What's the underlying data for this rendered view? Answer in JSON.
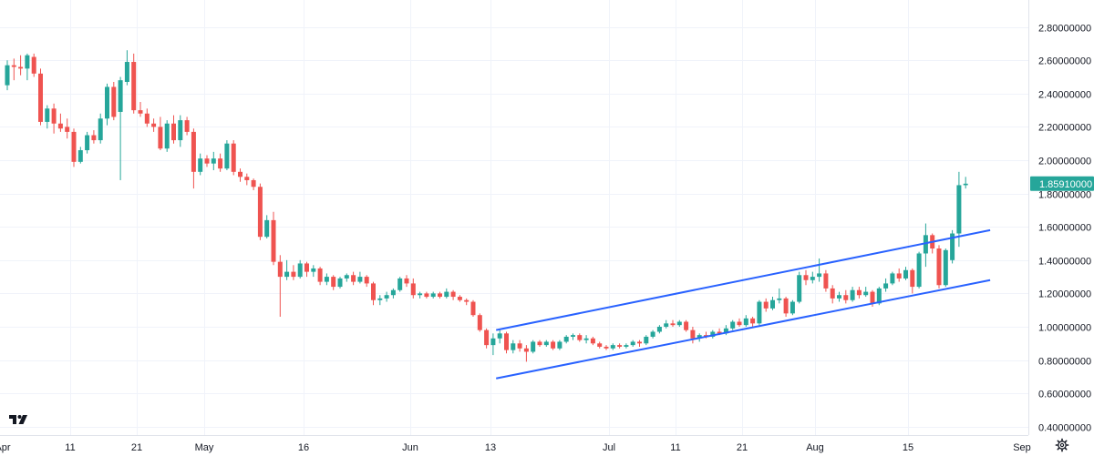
{
  "chart_data": {
    "type": "candlestick",
    "x_axis_labels": [
      "Apr",
      "11",
      "21",
      "May",
      "16",
      "Jun",
      "13",
      "Jul",
      "11",
      "21",
      "Aug",
      "15",
      "Sep"
    ],
    "y_axis_ticks": [
      "0.40000000",
      "0.60000000",
      "0.80000000",
      "1.00000000",
      "1.20000000",
      "1.40000000",
      "1.60000000",
      "1.80000000",
      "2.00000000",
      "2.20000000",
      "2.40000000",
      "2.60000000",
      "2.80000000"
    ],
    "ylim": [
      0.32,
      2.9
    ],
    "last_price": "1.85910000",
    "grid": true,
    "colors": {
      "up": "#26a69a",
      "down": "#ef5350",
      "channel": "#2962ff",
      "grid": "#f0f3fa"
    },
    "candles": [
      {
        "d": "Apr 1",
        "o": 2.45,
        "h": 2.6,
        "l": 2.42,
        "c": 2.57
      },
      {
        "d": "Apr 2",
        "o": 2.57,
        "h": 2.61,
        "l": 2.48,
        "c": 2.56
      },
      {
        "d": "Apr 3",
        "o": 2.56,
        "h": 2.63,
        "l": 2.51,
        "c": 2.55
      },
      {
        "d": "Apr 4",
        "o": 2.55,
        "h": 2.64,
        "l": 2.48,
        "c": 2.63
      },
      {
        "d": "Apr 5",
        "o": 2.62,
        "h": 2.64,
        "l": 2.5,
        "c": 2.52
      },
      {
        "d": "Apr 6",
        "o": 2.52,
        "h": 2.55,
        "l": 2.21,
        "c": 2.23
      },
      {
        "d": "Apr 7",
        "o": 2.23,
        "h": 2.33,
        "l": 2.19,
        "c": 2.31
      },
      {
        "d": "Apr 8",
        "o": 2.31,
        "h": 2.34,
        "l": 2.16,
        "c": 2.22
      },
      {
        "d": "Apr 9",
        "o": 2.22,
        "h": 2.28,
        "l": 2.17,
        "c": 2.19
      },
      {
        "d": "Apr 10",
        "o": 2.2,
        "h": 2.25,
        "l": 2.13,
        "c": 2.17
      },
      {
        "d": "Apr 11",
        "o": 2.17,
        "h": 2.19,
        "l": 1.96,
        "c": 1.99
      },
      {
        "d": "Apr 12",
        "o": 1.99,
        "h": 2.08,
        "l": 1.98,
        "c": 2.06
      },
      {
        "d": "Apr 13",
        "o": 2.06,
        "h": 2.17,
        "l": 2.04,
        "c": 2.15
      },
      {
        "d": "Apr 14",
        "o": 2.15,
        "h": 2.18,
        "l": 2.1,
        "c": 2.12
      },
      {
        "d": "Apr 15",
        "o": 2.12,
        "h": 2.28,
        "l": 2.1,
        "c": 2.25
      },
      {
        "d": "Apr 16",
        "o": 2.25,
        "h": 2.46,
        "l": 2.21,
        "c": 2.44
      },
      {
        "d": "Apr 17",
        "o": 2.44,
        "h": 2.47,
        "l": 2.24,
        "c": 2.26
      },
      {
        "d": "Apr 18",
        "o": 2.29,
        "h": 2.5,
        "l": 1.88,
        "c": 2.48
      },
      {
        "d": "Apr 19",
        "o": 2.47,
        "h": 2.66,
        "l": 2.45,
        "c": 2.59
      },
      {
        "d": "Apr 20",
        "o": 2.59,
        "h": 2.64,
        "l": 2.28,
        "c": 2.3
      },
      {
        "d": "Apr 21",
        "o": 2.3,
        "h": 2.35,
        "l": 2.26,
        "c": 2.28
      },
      {
        "d": "Apr 22",
        "o": 2.28,
        "h": 2.31,
        "l": 2.2,
        "c": 2.22
      },
      {
        "d": "Apr 23",
        "o": 2.22,
        "h": 2.25,
        "l": 2.17,
        "c": 2.2
      },
      {
        "d": "Apr 24",
        "o": 2.2,
        "h": 2.26,
        "l": 2.06,
        "c": 2.07
      },
      {
        "d": "Apr 25",
        "o": 2.07,
        "h": 2.24,
        "l": 2.05,
        "c": 2.22
      },
      {
        "d": "Apr 26",
        "o": 2.22,
        "h": 2.27,
        "l": 2.1,
        "c": 2.12
      },
      {
        "d": "Apr 27",
        "o": 2.12,
        "h": 2.27,
        "l": 2.08,
        "c": 2.24
      },
      {
        "d": "Apr 28",
        "o": 2.24,
        "h": 2.26,
        "l": 2.15,
        "c": 2.17
      },
      {
        "d": "Apr 29",
        "o": 2.17,
        "h": 2.19,
        "l": 1.83,
        "c": 1.93
      },
      {
        "d": "Apr 30",
        "o": 1.93,
        "h": 2.04,
        "l": 1.91,
        "c": 2.01
      },
      {
        "d": "May 1",
        "o": 2.01,
        "h": 2.03,
        "l": 1.96,
        "c": 1.98
      },
      {
        "d": "May 2",
        "o": 1.98,
        "h": 2.05,
        "l": 1.94,
        "c": 2.01
      },
      {
        "d": "May 3",
        "o": 2.01,
        "h": 2.04,
        "l": 1.93,
        "c": 1.95
      },
      {
        "d": "May 4",
        "o": 1.95,
        "h": 2.12,
        "l": 1.94,
        "c": 2.1
      },
      {
        "d": "May 5",
        "o": 2.1,
        "h": 2.12,
        "l": 1.91,
        "c": 1.93
      },
      {
        "d": "May 6",
        "o": 1.93,
        "h": 1.95,
        "l": 1.87,
        "c": 1.9
      },
      {
        "d": "May 7",
        "o": 1.9,
        "h": 1.92,
        "l": 1.85,
        "c": 1.88
      },
      {
        "d": "May 8",
        "o": 1.88,
        "h": 1.89,
        "l": 1.82,
        "c": 1.84
      },
      {
        "d": "May 9",
        "o": 1.84,
        "h": 1.86,
        "l": 1.52,
        "c": 1.54
      },
      {
        "d": "May 10",
        "o": 1.54,
        "h": 1.67,
        "l": 1.53,
        "c": 1.64
      },
      {
        "d": "May 11",
        "o": 1.64,
        "h": 1.69,
        "l": 1.37,
        "c": 1.39
      },
      {
        "d": "May 12",
        "o": 1.39,
        "h": 1.43,
        "l": 1.06,
        "c": 1.3
      },
      {
        "d": "May 13",
        "o": 1.3,
        "h": 1.4,
        "l": 1.28,
        "c": 1.33
      },
      {
        "d": "May 14",
        "o": 1.33,
        "h": 1.37,
        "l": 1.28,
        "c": 1.3
      },
      {
        "d": "May 15",
        "o": 1.3,
        "h": 1.4,
        "l": 1.29,
        "c": 1.38
      },
      {
        "d": "May 16",
        "o": 1.38,
        "h": 1.39,
        "l": 1.3,
        "c": 1.33
      },
      {
        "d": "May 17",
        "o": 1.33,
        "h": 1.37,
        "l": 1.3,
        "c": 1.35
      },
      {
        "d": "May 18",
        "o": 1.35,
        "h": 1.36,
        "l": 1.25,
        "c": 1.27
      },
      {
        "d": "May 19",
        "o": 1.27,
        "h": 1.32,
        "l": 1.25,
        "c": 1.3
      },
      {
        "d": "May 20",
        "o": 1.3,
        "h": 1.31,
        "l": 1.22,
        "c": 1.24
      },
      {
        "d": "May 21",
        "o": 1.24,
        "h": 1.3,
        "l": 1.23,
        "c": 1.29
      },
      {
        "d": "May 22",
        "o": 1.29,
        "h": 1.32,
        "l": 1.27,
        "c": 1.31
      },
      {
        "d": "May 23",
        "o": 1.31,
        "h": 1.33,
        "l": 1.25,
        "c": 1.27
      },
      {
        "d": "May 24",
        "o": 1.27,
        "h": 1.33,
        "l": 1.26,
        "c": 1.3
      },
      {
        "d": "May 25",
        "o": 1.3,
        "h": 1.31,
        "l": 1.24,
        "c": 1.26
      },
      {
        "d": "May 26",
        "o": 1.26,
        "h": 1.27,
        "l": 1.13,
        "c": 1.16
      },
      {
        "d": "May 27",
        "o": 1.16,
        "h": 1.19,
        "l": 1.13,
        "c": 1.17
      },
      {
        "d": "May 28",
        "o": 1.17,
        "h": 1.21,
        "l": 1.15,
        "c": 1.19
      },
      {
        "d": "May 29",
        "o": 1.19,
        "h": 1.23,
        "l": 1.17,
        "c": 1.22
      },
      {
        "d": "May 30",
        "o": 1.22,
        "h": 1.3,
        "l": 1.21,
        "c": 1.29
      },
      {
        "d": "May 31",
        "o": 1.29,
        "h": 1.31,
        "l": 1.24,
        "c": 1.26
      },
      {
        "d": "Jun 1",
        "o": 1.26,
        "h": 1.29,
        "l": 1.17,
        "c": 1.19
      },
      {
        "d": "Jun 2",
        "o": 1.19,
        "h": 1.21,
        "l": 1.17,
        "c": 1.2
      },
      {
        "d": "Jun 3",
        "o": 1.2,
        "h": 1.21,
        "l": 1.17,
        "c": 1.18
      },
      {
        "d": "Jun 4",
        "o": 1.18,
        "h": 1.21,
        "l": 1.17,
        "c": 1.2
      },
      {
        "d": "Jun 5",
        "o": 1.2,
        "h": 1.21,
        "l": 1.17,
        "c": 1.18
      },
      {
        "d": "Jun 6",
        "o": 1.18,
        "h": 1.23,
        "l": 1.17,
        "c": 1.21
      },
      {
        "d": "Jun 7",
        "o": 1.21,
        "h": 1.22,
        "l": 1.16,
        "c": 1.18
      },
      {
        "d": "Jun 8",
        "o": 1.18,
        "h": 1.19,
        "l": 1.15,
        "c": 1.16
      },
      {
        "d": "Jun 9",
        "o": 1.16,
        "h": 1.17,
        "l": 1.13,
        "c": 1.15
      },
      {
        "d": "Jun 10",
        "o": 1.15,
        "h": 1.16,
        "l": 1.06,
        "c": 1.07
      },
      {
        "d": "Jun 11",
        "o": 1.07,
        "h": 1.08,
        "l": 0.97,
        "c": 0.98
      },
      {
        "d": "Jun 12",
        "o": 0.98,
        "h": 0.99,
        "l": 0.87,
        "c": 0.89
      },
      {
        "d": "Jun 13",
        "o": 0.89,
        "h": 0.96,
        "l": 0.83,
        "c": 0.93
      },
      {
        "d": "Jun 14",
        "o": 0.93,
        "h": 0.98,
        "l": 0.9,
        "c": 0.96
      },
      {
        "d": "Jun 15",
        "o": 0.96,
        "h": 0.97,
        "l": 0.84,
        "c": 0.86
      },
      {
        "d": "Jun 16",
        "o": 0.86,
        "h": 0.92,
        "l": 0.84,
        "c": 0.9
      },
      {
        "d": "Jun 17",
        "o": 0.9,
        "h": 0.92,
        "l": 0.85,
        "c": 0.87
      },
      {
        "d": "Jun 18",
        "o": 0.87,
        "h": 0.89,
        "l": 0.79,
        "c": 0.85
      },
      {
        "d": "Jun 19",
        "o": 0.85,
        "h": 0.92,
        "l": 0.84,
        "c": 0.91
      },
      {
        "d": "Jun 20",
        "o": 0.91,
        "h": 0.92,
        "l": 0.88,
        "c": 0.89
      },
      {
        "d": "Jun 21",
        "o": 0.89,
        "h": 0.92,
        "l": 0.88,
        "c": 0.91
      },
      {
        "d": "Jun 22",
        "o": 0.91,
        "h": 0.92,
        "l": 0.86,
        "c": 0.87
      },
      {
        "d": "Jun 23",
        "o": 0.87,
        "h": 0.92,
        "l": 0.86,
        "c": 0.91
      },
      {
        "d": "Jun 24",
        "o": 0.91,
        "h": 0.95,
        "l": 0.9,
        "c": 0.94
      },
      {
        "d": "Jun 25",
        "o": 0.94,
        "h": 0.96,
        "l": 0.92,
        "c": 0.95
      },
      {
        "d": "Jun 26",
        "o": 0.95,
        "h": 0.96,
        "l": 0.91,
        "c": 0.92
      },
      {
        "d": "Jun 27",
        "o": 0.92,
        "h": 0.95,
        "l": 0.9,
        "c": 0.93
      },
      {
        "d": "Jun 28",
        "o": 0.93,
        "h": 0.94,
        "l": 0.89,
        "c": 0.9
      },
      {
        "d": "Jun 29",
        "o": 0.9,
        "h": 0.91,
        "l": 0.87,
        "c": 0.88
      },
      {
        "d": "Jun 30",
        "o": 0.88,
        "h": 0.89,
        "l": 0.86,
        "c": 0.87
      },
      {
        "d": "Jul 1",
        "o": 0.87,
        "h": 0.9,
        "l": 0.86,
        "c": 0.89
      },
      {
        "d": "Jul 2",
        "o": 0.89,
        "h": 0.9,
        "l": 0.87,
        "c": 0.88
      },
      {
        "d": "Jul 3",
        "o": 0.88,
        "h": 0.9,
        "l": 0.87,
        "c": 0.89
      },
      {
        "d": "Jul 4",
        "o": 0.89,
        "h": 0.92,
        "l": 0.88,
        "c": 0.91
      },
      {
        "d": "Jul 5",
        "o": 0.91,
        "h": 0.92,
        "l": 0.88,
        "c": 0.9
      },
      {
        "d": "Jul 6",
        "o": 0.9,
        "h": 0.95,
        "l": 0.89,
        "c": 0.94
      },
      {
        "d": "Jul 7",
        "o": 0.94,
        "h": 0.98,
        "l": 0.93,
        "c": 0.97
      },
      {
        "d": "Jul 8",
        "o": 0.97,
        "h": 1.01,
        "l": 0.96,
        "c": 1.0
      },
      {
        "d": "Jul 9",
        "o": 1.0,
        "h": 1.04,
        "l": 0.99,
        "c": 1.02
      },
      {
        "d": "Jul 10",
        "o": 1.02,
        "h": 1.04,
        "l": 1.0,
        "c": 1.01
      },
      {
        "d": "Jul 11",
        "o": 1.01,
        "h": 1.04,
        "l": 1.0,
        "c": 1.03
      },
      {
        "d": "Jul 12",
        "o": 1.03,
        "h": 1.04,
        "l": 0.97,
        "c": 0.98
      },
      {
        "d": "Jul 13",
        "o": 0.98,
        "h": 1.0,
        "l": 0.9,
        "c": 0.93
      },
      {
        "d": "Jul 14",
        "o": 0.93,
        "h": 0.96,
        "l": 0.91,
        "c": 0.95
      },
      {
        "d": "Jul 15",
        "o": 0.95,
        "h": 0.97,
        "l": 0.93,
        "c": 0.94
      },
      {
        "d": "Jul 16",
        "o": 0.94,
        "h": 0.98,
        "l": 0.93,
        "c": 0.97
      },
      {
        "d": "Jul 17",
        "o": 0.97,
        "h": 0.99,
        "l": 0.95,
        "c": 0.96
      },
      {
        "d": "Jul 18",
        "o": 0.96,
        "h": 1.01,
        "l": 0.95,
        "c": 0.99
      },
      {
        "d": "Jul 19",
        "o": 0.99,
        "h": 1.04,
        "l": 0.98,
        "c": 1.03
      },
      {
        "d": "Jul 20",
        "o": 1.03,
        "h": 1.05,
        "l": 1.0,
        "c": 1.01
      },
      {
        "d": "Jul 21",
        "o": 1.01,
        "h": 1.07,
        "l": 1.0,
        "c": 1.05
      },
      {
        "d": "Jul 22",
        "o": 1.05,
        "h": 1.06,
        "l": 1.0,
        "c": 1.02
      },
      {
        "d": "Jul 23",
        "o": 1.02,
        "h": 1.16,
        "l": 1.01,
        "c": 1.15
      },
      {
        "d": "Jul 24",
        "o": 1.15,
        "h": 1.17,
        "l": 1.09,
        "c": 1.11
      },
      {
        "d": "Jul 25",
        "o": 1.11,
        "h": 1.18,
        "l": 1.1,
        "c": 1.16
      },
      {
        "d": "Jul 26",
        "o": 1.16,
        "h": 1.23,
        "l": 1.14,
        "c": 1.17
      },
      {
        "d": "Jul 27",
        "o": 1.17,
        "h": 1.18,
        "l": 1.06,
        "c": 1.08
      },
      {
        "d": "Jul 28",
        "o": 1.08,
        "h": 1.16,
        "l": 1.07,
        "c": 1.15
      },
      {
        "d": "Jul 29",
        "o": 1.15,
        "h": 1.33,
        "l": 1.14,
        "c": 1.31
      },
      {
        "d": "Jul 30",
        "o": 1.31,
        "h": 1.34,
        "l": 1.25,
        "c": 1.28
      },
      {
        "d": "Jul 31",
        "o": 1.28,
        "h": 1.33,
        "l": 1.26,
        "c": 1.3
      },
      {
        "d": "Aug 1",
        "o": 1.3,
        "h": 1.41,
        "l": 1.27,
        "c": 1.32
      },
      {
        "d": "Aug 2",
        "o": 1.32,
        "h": 1.34,
        "l": 1.21,
        "c": 1.23
      },
      {
        "d": "Aug 3",
        "o": 1.23,
        "h": 1.25,
        "l": 1.14,
        "c": 1.17
      },
      {
        "d": "Aug 4",
        "o": 1.17,
        "h": 1.21,
        "l": 1.15,
        "c": 1.19
      },
      {
        "d": "Aug 5",
        "o": 1.19,
        "h": 1.22,
        "l": 1.14,
        "c": 1.16
      },
      {
        "d": "Aug 6",
        "o": 1.16,
        "h": 1.24,
        "l": 1.15,
        "c": 1.22
      },
      {
        "d": "Aug 7",
        "o": 1.22,
        "h": 1.24,
        "l": 1.17,
        "c": 1.19
      },
      {
        "d": "Aug 8",
        "o": 1.19,
        "h": 1.24,
        "l": 1.18,
        "c": 1.21
      },
      {
        "d": "Aug 9",
        "o": 1.21,
        "h": 1.22,
        "l": 1.12,
        "c": 1.14
      },
      {
        "d": "Aug 10",
        "o": 1.14,
        "h": 1.24,
        "l": 1.13,
        "c": 1.23
      },
      {
        "d": "Aug 11",
        "o": 1.23,
        "h": 1.29,
        "l": 1.21,
        "c": 1.26
      },
      {
        "d": "Aug 12",
        "o": 1.26,
        "h": 1.33,
        "l": 1.25,
        "c": 1.32
      },
      {
        "d": "Aug 13",
        "o": 1.32,
        "h": 1.35,
        "l": 1.27,
        "c": 1.29
      },
      {
        "d": "Aug 14",
        "o": 1.29,
        "h": 1.36,
        "l": 1.28,
        "c": 1.34
      },
      {
        "d": "Aug 15",
        "o": 1.34,
        "h": 1.35,
        "l": 1.2,
        "c": 1.24
      },
      {
        "d": "Aug 16",
        "o": 1.24,
        "h": 1.45,
        "l": 1.23,
        "c": 1.44
      },
      {
        "d": "Aug 17",
        "o": 1.44,
        "h": 1.62,
        "l": 1.36,
        "c": 1.55
      },
      {
        "d": "Aug 18",
        "o": 1.55,
        "h": 1.56,
        "l": 1.44,
        "c": 1.47
      },
      {
        "d": "Aug 19",
        "o": 1.47,
        "h": 1.49,
        "l": 1.23,
        "c": 1.25
      },
      {
        "d": "Aug 20",
        "o": 1.25,
        "h": 1.47,
        "l": 1.24,
        "c": 1.46
      },
      {
        "d": "Aug 21",
        "o": 1.4,
        "h": 1.58,
        "l": 1.38,
        "c": 1.56
      },
      {
        "d": "Aug 22",
        "o": 1.56,
        "h": 1.93,
        "l": 1.48,
        "c": 1.85
      },
      {
        "d": "Aug 23",
        "o": 1.85,
        "h": 1.9,
        "l": 1.83,
        "c": 1.859
      }
    ],
    "channel_lines": [
      {
        "from": {
          "date": "Jun 14",
          "value": 0.98
        },
        "to": {
          "date": "Aug 26",
          "value": 1.58
        }
      },
      {
        "from": {
          "date": "Jun 14",
          "value": 0.69
        },
        "to": {
          "date": "Aug 26",
          "value": 1.28
        }
      }
    ]
  },
  "ui": {
    "logo_icon": "tradingview-logo-icon",
    "settings_icon": "gear-icon"
  }
}
